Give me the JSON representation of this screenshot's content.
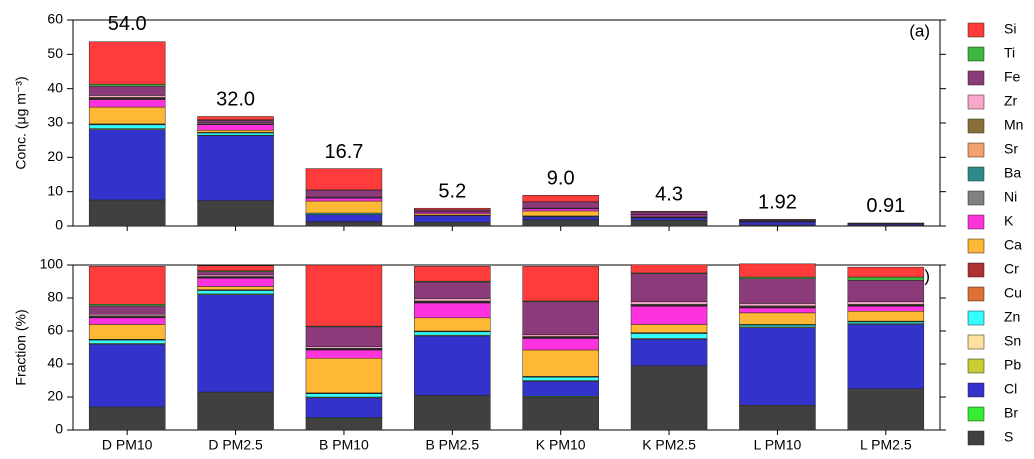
{
  "chart_data": [
    {
      "type": "bar",
      "stacked": true,
      "annotation": "(a)",
      "y_label": "Conc. (μg m⁻³)",
      "ylim": [
        0,
        60
      ],
      "yticks": [
        0,
        10,
        20,
        30,
        40,
        50,
        60
      ],
      "totals": [
        54,
        32,
        16.7,
        5.2,
        9,
        4.3,
        1.92,
        0.91
      ],
      "total_labels": [
        "54.0",
        "32.0",
        "16.7",
        "5.2",
        "9.0",
        "4.3",
        "1.92",
        "0.91"
      ],
      "series": [
        {
          "name": "Si",
          "color": "#ff3b3b",
          "values": [
            12.4,
            0.96,
            6.2,
            0.47,
            1.89,
            0.22,
            0.15,
            0.05
          ]
        },
        {
          "name": "Ti",
          "color": "#3cb83c",
          "values": [
            0.54,
            0.16,
            0.08,
            0.03,
            0.05,
            0.02,
            0.02,
            0.02
          ]
        },
        {
          "name": "Fe",
          "color": "#8b3a7a",
          "values": [
            2.7,
            0.64,
            2.0,
            0.52,
            1.8,
            0.73,
            0.29,
            0.12
          ]
        },
        {
          "name": "Zr",
          "color": "#f7a8c8",
          "values": [
            0.54,
            0.32,
            0.17,
            0.08,
            0.09,
            0.06,
            0.03,
            0.01
          ]
        },
        {
          "name": "Mn",
          "color": "#8b6f3a",
          "values": [
            0.27,
            0.1,
            0.05,
            0.03,
            0.05,
            0.02,
            0.01,
            0
          ]
        },
        {
          "name": "Sr",
          "color": "#f4a070",
          "values": [
            0.11,
            0.06,
            0.03,
            0.01,
            0.02,
            0.01,
            0,
            0
          ]
        },
        {
          "name": "Ba",
          "color": "#2e8b8b",
          "values": [
            0.11,
            0.06,
            0.03,
            0.01,
            0.02,
            0.01,
            0,
            0
          ]
        },
        {
          "name": "Ni",
          "color": "#808080",
          "values": [
            0.16,
            0.1,
            0.05,
            0.02,
            0.03,
            0.01,
            0.01,
            0
          ]
        },
        {
          "name": "K",
          "color": "#ff33dd",
          "values": [
            2.2,
            1.6,
            0.84,
            0.47,
            0.63,
            0.47,
            0.06,
            0.03
          ]
        },
        {
          "name": "Ca",
          "color": "#ffb833",
          "values": [
            4.9,
            0.64,
            3.5,
            0.42,
            1.44,
            0.22,
            0.13,
            0.05
          ]
        },
        {
          "name": "Cr",
          "color": "#b03030",
          "values": [
            0.11,
            0.06,
            0.03,
            0.01,
            0.02,
            0.01,
            0,
            0
          ]
        },
        {
          "name": "Cu",
          "color": "#e07030",
          "values": [
            0.16,
            0.1,
            0.05,
            0.02,
            0.03,
            0.01,
            0.01,
            0
          ]
        },
        {
          "name": "Zn",
          "color": "#33ffff",
          "values": [
            1.1,
            0.64,
            0.33,
            0.1,
            0.18,
            0.13,
            0.02,
            0.01
          ]
        },
        {
          "name": "Sn",
          "color": "#ffe0a0",
          "values": [
            0,
            0,
            0,
            0,
            0,
            0,
            0,
            0
          ]
        },
        {
          "name": "Pb",
          "color": "#cccc33",
          "values": [
            0.27,
            0.16,
            0.08,
            0.03,
            0.05,
            0.02,
            0.01,
            0
          ]
        },
        {
          "name": "Cl",
          "color": "#3333cc",
          "values": [
            20.5,
            18.9,
            2.0,
            1.87,
            0.81,
            0.69,
            0.9,
            0.35
          ]
        },
        {
          "name": "Br",
          "color": "#33ee33",
          "values": [
            0,
            0,
            0.08,
            0,
            0.05,
            0,
            0,
            0
          ]
        },
        {
          "name": "S",
          "color": "#404040",
          "values": [
            7.6,
            7.4,
            1.2,
            1.09,
            1.8,
            1.68,
            0.29,
            0.23
          ]
        }
      ]
    },
    {
      "type": "bar",
      "stacked": true,
      "annotation": "(b)",
      "y_label": "Fraction (%)",
      "categories": [
        "D PM10",
        "D PM2.5",
        "B PM10",
        "B PM2.5",
        "K PM10",
        "K PM2.5",
        "L PM10",
        "L PM2.5"
      ],
      "ylim": [
        0,
        100
      ],
      "yticks": [
        0,
        20,
        40,
        60,
        80,
        100
      ],
      "series": [
        {
          "values": [
            23,
            3,
            37,
            9,
            21,
            5,
            8,
            6
          ]
        },
        {
          "values": [
            1,
            0.5,
            0.5,
            0.5,
            0.5,
            0.5,
            1,
            2
          ]
        },
        {
          "values": [
            5,
            2,
            12,
            10,
            20,
            17,
            15,
            13
          ]
        },
        {
          "values": [
            1,
            1,
            1,
            1.5,
            1,
            1.5,
            1.5,
            1.5
          ]
        },
        {
          "values": [
            0.5,
            0.3,
            0.3,
            0.5,
            0.5,
            0.5,
            0.5,
            0.5
          ]
        },
        {
          "values": [
            0.2,
            0.2,
            0.2,
            0.2,
            0.2,
            0.2,
            0.2,
            0.2
          ]
        },
        {
          "values": [
            0.2,
            0.2,
            0.2,
            0.2,
            0.2,
            0.2,
            0.2,
            0.2
          ]
        },
        {
          "values": [
            0.3,
            0.3,
            0.3,
            0.3,
            0.3,
            0.3,
            0.3,
            0.3
          ]
        },
        {
          "values": [
            4,
            5,
            5,
            9,
            7,
            11,
            3,
            3
          ]
        },
        {
          "values": [
            9,
            2,
            21,
            8,
            16,
            5,
            7,
            6
          ]
        },
        {
          "values": [
            0.2,
            0.2,
            0.2,
            0.2,
            0.2,
            0.2,
            0.2,
            0.2
          ]
        },
        {
          "values": [
            0.3,
            0.3,
            0.3,
            0.3,
            0.3,
            0.3,
            0.3,
            0.3
          ]
        },
        {
          "values": [
            2,
            2,
            2,
            2,
            2,
            3,
            1,
            1
          ]
        },
        {
          "values": [
            0,
            0,
            0,
            0,
            0,
            0,
            0,
            0
          ]
        },
        {
          "values": [
            0.5,
            0.5,
            0.5,
            0.5,
            0.5,
            0.5,
            0.5,
            0.5
          ]
        },
        {
          "values": [
            38,
            59,
            12,
            36,
            9,
            16,
            47,
            39
          ]
        },
        {
          "values": [
            0,
            0,
            0.5,
            0,
            0.5,
            0,
            0,
            0
          ]
        },
        {
          "values": [
            14,
            23,
            7,
            21,
            20,
            39,
            15,
            25
          ]
        }
      ]
    }
  ]
}
